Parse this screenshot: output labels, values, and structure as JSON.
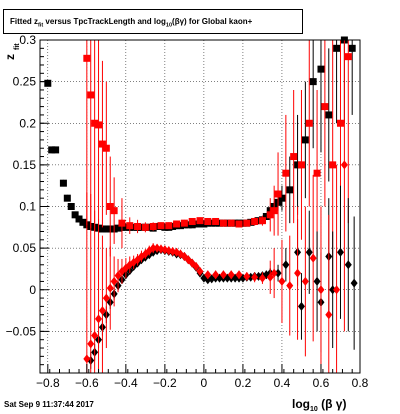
{
  "title": {
    "prefix": "Fitted  z",
    "prefix_sub": "fit",
    "mid": " versus TpcTrackLength and log",
    "mid_sub": "10",
    "suffix": "(βγ) for Global kaon+"
  },
  "datestamp": "Sat Sep  9 11:37:44 2017",
  "chart_data": {
    "type": "scatter",
    "title": "Fitted z_fit versus TpcTrackLength and log10(βγ) for Global kaon+",
    "xlabel": "log10 (β γ)",
    "ylabel": "z_fit",
    "xlim": [
      -0.84,
      0.8
    ],
    "ylim": [
      -0.1,
      0.3
    ],
    "x_ticks": [
      -0.8,
      -0.6,
      -0.4,
      -0.2,
      0,
      0.2,
      0.4,
      0.6,
      0.8
    ],
    "x_tick_labels": [
      "−0.8",
      "−0.6",
      "−0.4",
      "−0.2",
      "0",
      "0.2",
      "0.4",
      "0.6",
      "0.8"
    ],
    "y_ticks": [
      -0.05,
      0,
      0.05,
      0.1,
      0.15,
      0.2,
      0.25,
      0.3
    ],
    "y_tick_labels": [
      "−0.05",
      "0",
      "0.05",
      "0.1",
      "0.15",
      "0.2",
      "0.25",
      "0.3"
    ],
    "grid": true,
    "series": [
      {
        "color": "#000000",
        "marker": "square",
        "points": [
          [
            -0.8,
            0.248,
            0.003
          ],
          [
            -0.78,
            0.168,
            0.004
          ],
          [
            -0.76,
            0.168,
            0.003
          ],
          [
            -0.72,
            0.128,
            0.004
          ],
          [
            -0.7,
            0.11,
            0.004
          ],
          [
            -0.68,
            0.1,
            0.004
          ],
          [
            -0.66,
            0.09,
            0.004
          ],
          [
            -0.64,
            0.085,
            0.003
          ],
          [
            -0.62,
            0.081,
            0.003
          ],
          [
            -0.6,
            0.078,
            0.003
          ],
          [
            -0.58,
            0.076,
            0.003
          ],
          [
            -0.56,
            0.075,
            0.003
          ],
          [
            -0.54,
            0.074,
            0.003
          ],
          [
            -0.52,
            0.073,
            0.003
          ],
          [
            -0.5,
            0.073,
            0.003
          ],
          [
            -0.48,
            0.073,
            0.003
          ],
          [
            -0.46,
            0.073,
            0.003
          ],
          [
            -0.44,
            0.074,
            0.002
          ],
          [
            -0.42,
            0.075,
            0.002
          ],
          [
            -0.4,
            0.075,
            0.002
          ],
          [
            -0.38,
            0.075,
            0.002
          ],
          [
            -0.36,
            0.075,
            0.002
          ],
          [
            -0.34,
            0.075,
            0.002
          ],
          [
            -0.32,
            0.075,
            0.002
          ],
          [
            -0.3,
            0.075,
            0.002
          ],
          [
            -0.28,
            0.075,
            0.002
          ],
          [
            -0.26,
            0.074,
            0.002
          ],
          [
            -0.24,
            0.076,
            0.002
          ],
          [
            -0.22,
            0.076,
            0.002
          ],
          [
            -0.2,
            0.075,
            0.002
          ],
          [
            -0.18,
            0.075,
            0.002
          ],
          [
            -0.16,
            0.076,
            0.002
          ],
          [
            -0.14,
            0.077,
            0.002
          ],
          [
            -0.12,
            0.077,
            0.002
          ],
          [
            -0.1,
            0.078,
            0.002
          ],
          [
            -0.08,
            0.078,
            0.002
          ],
          [
            -0.06,
            0.078,
            0.002
          ],
          [
            -0.04,
            0.079,
            0.002
          ],
          [
            -0.02,
            0.079,
            0.002
          ],
          [
            0.0,
            0.079,
            0.002
          ],
          [
            0.02,
            0.08,
            0.002
          ],
          [
            0.04,
            0.08,
            0.002
          ],
          [
            0.06,
            0.08,
            0.002
          ],
          [
            0.08,
            0.08,
            0.002
          ],
          [
            0.1,
            0.08,
            0.002
          ],
          [
            0.12,
            0.08,
            0.002
          ],
          [
            0.14,
            0.08,
            0.002
          ],
          [
            0.16,
            0.08,
            0.002
          ],
          [
            0.18,
            0.08,
            0.002
          ],
          [
            0.2,
            0.08,
            0.002
          ],
          [
            0.22,
            0.08,
            0.002
          ],
          [
            0.24,
            0.081,
            0.002
          ],
          [
            0.26,
            0.082,
            0.002
          ],
          [
            0.28,
            0.083,
            0.002
          ],
          [
            0.3,
            0.084,
            0.003
          ],
          [
            0.32,
            0.088,
            0.004
          ],
          [
            0.34,
            0.095,
            0.004
          ],
          [
            0.36,
            0.1,
            0.006
          ],
          [
            0.38,
            0.105,
            0.01
          ],
          [
            0.4,
            0.11,
            0.015
          ],
          [
            0.44,
            0.12,
            0.04
          ],
          [
            0.48,
            0.15,
            0.06
          ],
          [
            0.52,
            0.18,
            0.07
          ],
          [
            0.56,
            0.25,
            0.08
          ],
          [
            0.6,
            0.265,
            0.1
          ],
          [
            0.64,
            0.21,
            0.08
          ],
          [
            0.68,
            0.29,
            0.09
          ],
          [
            0.72,
            0.3,
            0.1
          ],
          [
            0.76,
            0.29,
            0.08
          ]
        ]
      },
      {
        "color": "#ff0000",
        "marker": "square",
        "points": [
          [
            -0.6,
            0.278,
            0.2
          ],
          [
            -0.58,
            0.234,
            0.16
          ],
          [
            -0.56,
            0.2,
            0.13
          ],
          [
            -0.54,
            0.198,
            0.12
          ],
          [
            -0.52,
            0.175,
            0.1
          ],
          [
            -0.5,
            0.17,
            0.08
          ],
          [
            -0.48,
            0.1,
            0.06
          ],
          [
            -0.46,
            0.095,
            0.04
          ],
          [
            -0.42,
            0.08,
            0.03
          ],
          [
            -0.38,
            0.077,
            0.01
          ],
          [
            -0.34,
            0.076,
            0.008
          ],
          [
            -0.3,
            0.075,
            0.006
          ],
          [
            -0.26,
            0.076,
            0.005
          ],
          [
            -0.22,
            0.077,
            0.004
          ],
          [
            -0.18,
            0.077,
            0.004
          ],
          [
            -0.14,
            0.079,
            0.004
          ],
          [
            -0.1,
            0.08,
            0.004
          ],
          [
            -0.06,
            0.082,
            0.004
          ],
          [
            -0.02,
            0.083,
            0.004
          ],
          [
            0.02,
            0.082,
            0.004
          ],
          [
            0.06,
            0.082,
            0.004
          ],
          [
            0.1,
            0.08,
            0.004
          ],
          [
            0.14,
            0.08,
            0.004
          ],
          [
            0.18,
            0.079,
            0.004
          ],
          [
            0.22,
            0.08,
            0.004
          ],
          [
            0.26,
            0.082,
            0.005
          ],
          [
            0.3,
            0.083,
            0.006
          ],
          [
            0.34,
            0.09,
            0.02
          ],
          [
            0.36,
            0.095,
            0.03
          ],
          [
            0.38,
            0.115,
            0.05
          ],
          [
            0.42,
            0.14,
            0.07
          ],
          [
            0.46,
            0.16,
            0.08
          ],
          [
            0.5,
            0.15,
            0.09
          ],
          [
            0.54,
            0.2,
            0.1
          ],
          [
            0.58,
            0.14,
            0.1
          ],
          [
            0.62,
            0.22,
            0.12
          ],
          [
            0.66,
            0.15,
            0.15
          ],
          [
            0.7,
            0.2,
            0.2
          ],
          [
            0.74,
            0.28,
            0.2
          ]
        ]
      },
      {
        "color": "#000000",
        "marker": "diamond",
        "points": [
          [
            -0.58,
            -0.085,
            0.01
          ],
          [
            -0.56,
            -0.075,
            0.01
          ],
          [
            -0.54,
            -0.06,
            0.01
          ],
          [
            -0.52,
            -0.045,
            0.01
          ],
          [
            -0.5,
            -0.03,
            0.01
          ],
          [
            -0.48,
            -0.015,
            0.008
          ],
          [
            -0.46,
            -0.005,
            0.007
          ],
          [
            -0.44,
            0.005,
            0.006
          ],
          [
            -0.42,
            0.012,
            0.005
          ],
          [
            -0.4,
            0.018,
            0.005
          ],
          [
            -0.38,
            0.023,
            0.004
          ],
          [
            -0.36,
            0.028,
            0.004
          ],
          [
            -0.34,
            0.032,
            0.004
          ],
          [
            -0.32,
            0.036,
            0.004
          ],
          [
            -0.3,
            0.039,
            0.004
          ],
          [
            -0.28,
            0.042,
            0.004
          ],
          [
            -0.26,
            0.045,
            0.003
          ],
          [
            -0.24,
            0.047,
            0.003
          ],
          [
            -0.22,
            0.048,
            0.003
          ],
          [
            -0.2,
            0.047,
            0.003
          ],
          [
            -0.18,
            0.046,
            0.003
          ],
          [
            -0.16,
            0.045,
            0.003
          ],
          [
            -0.14,
            0.043,
            0.003
          ],
          [
            -0.12,
            0.042,
            0.003
          ],
          [
            -0.1,
            0.04,
            0.003
          ],
          [
            -0.08,
            0.036,
            0.003
          ],
          [
            -0.06,
            0.032,
            0.003
          ],
          [
            -0.04,
            0.027,
            0.003
          ],
          [
            -0.02,
            0.02,
            0.003
          ],
          [
            0.0,
            0.014,
            0.003
          ],
          [
            0.02,
            0.012,
            0.003
          ],
          [
            0.04,
            0.013,
            0.003
          ],
          [
            0.06,
            0.014,
            0.003
          ],
          [
            0.08,
            0.014,
            0.003
          ],
          [
            0.1,
            0.014,
            0.003
          ],
          [
            0.12,
            0.014,
            0.003
          ],
          [
            0.14,
            0.014,
            0.003
          ],
          [
            0.16,
            0.014,
            0.003
          ],
          [
            0.18,
            0.014,
            0.003
          ],
          [
            0.2,
            0.014,
            0.003
          ],
          [
            0.22,
            0.015,
            0.003
          ],
          [
            0.24,
            0.015,
            0.003
          ],
          [
            0.26,
            0.016,
            0.003
          ],
          [
            0.28,
            0.016,
            0.004
          ],
          [
            0.3,
            0.017,
            0.004
          ],
          [
            0.32,
            0.018,
            0.005
          ],
          [
            0.34,
            0.02,
            0.006
          ],
          [
            0.38,
            0.02,
            0.01
          ],
          [
            0.42,
            0.03,
            0.02
          ],
          [
            0.48,
            0.045,
            0.04
          ],
          [
            0.5,
            -0.02,
            0.04
          ],
          [
            0.54,
            0.045,
            0.05
          ],
          [
            0.58,
            0.01,
            0.06
          ],
          [
            0.6,
            -0.015,
            0.06
          ],
          [
            0.64,
            0.04,
            0.07
          ],
          [
            0.66,
            0.0,
            0.07
          ],
          [
            0.7,
            0.045,
            0.08
          ],
          [
            0.74,
            0.03,
            0.08
          ],
          [
            0.77,
            0.008,
            0.08
          ]
        ]
      },
      {
        "color": "#ff0000",
        "marker": "diamond",
        "points": [
          [
            -0.6,
            -0.083,
            0.2
          ],
          [
            -0.58,
            -0.065,
            0.18
          ],
          [
            -0.56,
            -0.055,
            0.15
          ],
          [
            -0.54,
            -0.035,
            0.12
          ],
          [
            -0.52,
            -0.025,
            0.09
          ],
          [
            -0.5,
            -0.01,
            0.06
          ],
          [
            -0.48,
            0.002,
            0.05
          ],
          [
            -0.46,
            0.01,
            0.03
          ],
          [
            -0.44,
            0.017,
            0.02
          ],
          [
            -0.42,
            0.022,
            0.015
          ],
          [
            -0.4,
            0.026,
            0.012
          ],
          [
            -0.38,
            0.03,
            0.01
          ],
          [
            -0.36,
            0.033,
            0.008
          ],
          [
            -0.34,
            0.036,
            0.007
          ],
          [
            -0.32,
            0.04,
            0.007
          ],
          [
            -0.3,
            0.043,
            0.006
          ],
          [
            -0.28,
            0.047,
            0.006
          ],
          [
            -0.26,
            0.05,
            0.006
          ],
          [
            -0.24,
            0.05,
            0.005
          ],
          [
            -0.22,
            0.049,
            0.005
          ],
          [
            -0.2,
            0.048,
            0.005
          ],
          [
            -0.18,
            0.047,
            0.005
          ],
          [
            -0.16,
            0.046,
            0.005
          ],
          [
            -0.14,
            0.045,
            0.005
          ],
          [
            -0.12,
            0.043,
            0.005
          ],
          [
            -0.1,
            0.04,
            0.005
          ],
          [
            -0.08,
            0.036,
            0.005
          ],
          [
            -0.06,
            0.032,
            0.005
          ],
          [
            -0.04,
            0.028,
            0.005
          ],
          [
            -0.02,
            0.022,
            0.005
          ],
          [
            0.02,
            0.018,
            0.005
          ],
          [
            0.06,
            0.018,
            0.005
          ],
          [
            0.1,
            0.018,
            0.005
          ],
          [
            0.14,
            0.018,
            0.005
          ],
          [
            0.18,
            0.018,
            0.005
          ],
          [
            0.22,
            0.016,
            0.005
          ],
          [
            0.26,
            0.015,
            0.006
          ],
          [
            0.3,
            0.014,
            0.007
          ],
          [
            0.34,
            0.015,
            0.02
          ],
          [
            0.36,
            0.02,
            0.03
          ],
          [
            0.4,
            0.01,
            0.05
          ],
          [
            0.44,
            0.005,
            0.06
          ],
          [
            0.48,
            0.02,
            0.08
          ],
          [
            0.52,
            0.01,
            0.09
          ],
          [
            0.56,
            0.038,
            0.1
          ],
          [
            0.6,
            0.0,
            0.1
          ],
          [
            0.64,
            -0.03,
            0.12
          ],
          [
            0.68,
            0.0,
            0.15
          ],
          [
            0.72,
            0.15,
            0.2
          ]
        ]
      }
    ]
  }
}
